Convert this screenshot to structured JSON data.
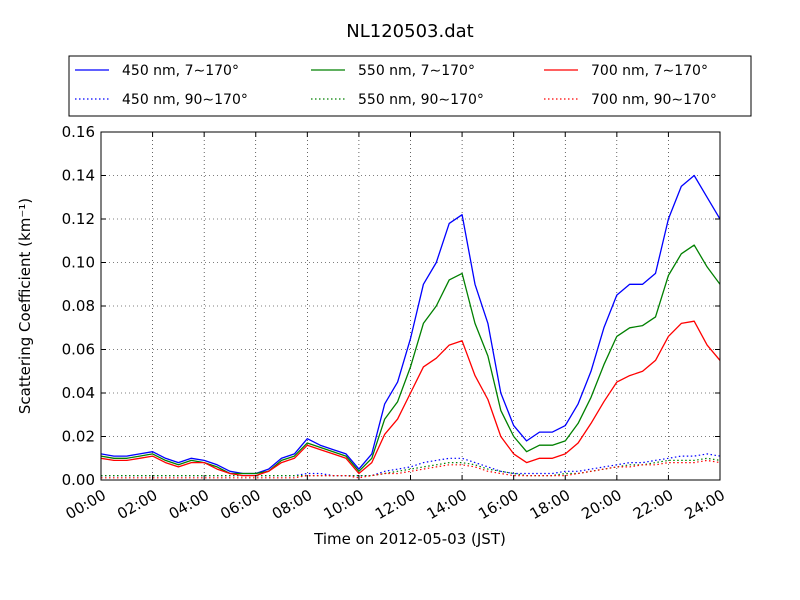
{
  "chart_data": {
    "type": "line",
    "title": "NL120503.dat",
    "xlabel": "Time on 2012-05-03 (JST)",
    "ylabel": "Scattering Coefficient (km⁻¹)",
    "xlim": [
      0,
      24
    ],
    "ylim": [
      0.0,
      0.16
    ],
    "xticks": [
      0,
      2,
      4,
      6,
      8,
      10,
      12,
      14,
      16,
      18,
      20,
      22,
      24
    ],
    "xtick_labels": [
      "00:00",
      "02:00",
      "04:00",
      "06:00",
      "08:00",
      "10:00",
      "12:00",
      "14:00",
      "16:00",
      "18:00",
      "20:00",
      "22:00",
      "24:00"
    ],
    "yticks": [
      0.0,
      0.02,
      0.04,
      0.06,
      0.08,
      0.1,
      0.12,
      0.14,
      0.16
    ],
    "ytick_labels": [
      "0.00",
      "0.02",
      "0.04",
      "0.06",
      "0.08",
      "0.10",
      "0.12",
      "0.14",
      "0.16"
    ],
    "grid": true,
    "legend_position": "top (above plot), 3 columns",
    "x": [
      0,
      0.5,
      1,
      1.5,
      2,
      2.5,
      3,
      3.5,
      4,
      4.5,
      5,
      5.5,
      6,
      6.5,
      7,
      7.5,
      8,
      8.5,
      9,
      9.5,
      10,
      10.5,
      11,
      11.5,
      12,
      12.5,
      13,
      13.5,
      14,
      14.5,
      15,
      15.5,
      16,
      16.5,
      17,
      17.5,
      18,
      18.5,
      19,
      19.5,
      20,
      20.5,
      21,
      21.5,
      22,
      22.5,
      23,
      23.5,
      24
    ],
    "series": [
      {
        "name": "450 nm, 7∼170°",
        "color": "#0000ff",
        "style": "solid",
        "values": [
          0.012,
          0.011,
          0.011,
          0.012,
          0.013,
          0.01,
          0.008,
          0.01,
          0.009,
          0.007,
          0.004,
          0.003,
          0.003,
          0.005,
          0.01,
          0.012,
          0.019,
          0.016,
          0.014,
          0.012,
          0.005,
          0.012,
          0.035,
          0.045,
          0.065,
          0.09,
          0.1,
          0.118,
          0.122,
          0.09,
          0.072,
          0.04,
          0.025,
          0.018,
          0.022,
          0.022,
          0.025,
          0.035,
          0.05,
          0.07,
          0.085,
          0.09,
          0.09,
          0.095,
          0.12,
          0.135,
          0.14,
          0.13,
          0.12
        ]
      },
      {
        "name": "550 nm, 7∼170°",
        "color": "#008000",
        "style": "solid",
        "values": [
          0.011,
          0.01,
          0.01,
          0.011,
          0.012,
          0.009,
          0.007,
          0.009,
          0.008,
          0.006,
          0.003,
          0.003,
          0.003,
          0.004,
          0.009,
          0.011,
          0.017,
          0.015,
          0.013,
          0.011,
          0.004,
          0.01,
          0.028,
          0.036,
          0.052,
          0.072,
          0.08,
          0.092,
          0.095,
          0.072,
          0.057,
          0.032,
          0.02,
          0.013,
          0.016,
          0.016,
          0.018,
          0.026,
          0.038,
          0.053,
          0.066,
          0.07,
          0.071,
          0.075,
          0.094,
          0.104,
          0.108,
          0.098,
          0.09
        ]
      },
      {
        "name": "700 nm, 7∼170°",
        "color": "#ff0000",
        "style": "solid",
        "values": [
          0.01,
          0.009,
          0.009,
          0.01,
          0.011,
          0.008,
          0.006,
          0.008,
          0.008,
          0.005,
          0.003,
          0.002,
          0.002,
          0.004,
          0.008,
          0.01,
          0.016,
          0.014,
          0.012,
          0.01,
          0.003,
          0.008,
          0.021,
          0.028,
          0.04,
          0.052,
          0.056,
          0.062,
          0.064,
          0.048,
          0.037,
          0.02,
          0.012,
          0.008,
          0.01,
          0.01,
          0.012,
          0.017,
          0.026,
          0.036,
          0.045,
          0.048,
          0.05,
          0.055,
          0.066,
          0.072,
          0.073,
          0.062,
          0.055
        ]
      },
      {
        "name": "450 nm, 90∼170°",
        "color": "#0000ff",
        "style": "dotted",
        "values": [
          0.002,
          0.002,
          0.002,
          0.002,
          0.002,
          0.002,
          0.002,
          0.002,
          0.002,
          0.002,
          0.002,
          0.002,
          0.002,
          0.002,
          0.002,
          0.002,
          0.003,
          0.003,
          0.002,
          0.002,
          0.002,
          0.002,
          0.004,
          0.005,
          0.006,
          0.008,
          0.009,
          0.01,
          0.01,
          0.008,
          0.006,
          0.004,
          0.003,
          0.003,
          0.003,
          0.003,
          0.004,
          0.004,
          0.005,
          0.006,
          0.007,
          0.008,
          0.008,
          0.009,
          0.01,
          0.011,
          0.011,
          0.012,
          0.011
        ]
      },
      {
        "name": "550 nm, 90∼170°",
        "color": "#008000",
        "style": "dotted",
        "values": [
          0.002,
          0.002,
          0.002,
          0.002,
          0.002,
          0.002,
          0.002,
          0.002,
          0.002,
          0.002,
          0.002,
          0.002,
          0.002,
          0.002,
          0.002,
          0.002,
          0.002,
          0.002,
          0.002,
          0.002,
          0.002,
          0.002,
          0.003,
          0.004,
          0.005,
          0.006,
          0.007,
          0.008,
          0.008,
          0.007,
          0.005,
          0.004,
          0.003,
          0.002,
          0.002,
          0.002,
          0.003,
          0.003,
          0.004,
          0.005,
          0.006,
          0.007,
          0.007,
          0.008,
          0.009,
          0.009,
          0.009,
          0.01,
          0.009
        ]
      },
      {
        "name": "700 nm, 90∼170°",
        "color": "#ff0000",
        "style": "dotted",
        "values": [
          0.001,
          0.001,
          0.001,
          0.001,
          0.001,
          0.001,
          0.001,
          0.001,
          0.001,
          0.001,
          0.001,
          0.001,
          0.001,
          0.001,
          0.001,
          0.001,
          0.002,
          0.002,
          0.002,
          0.002,
          0.001,
          0.002,
          0.003,
          0.003,
          0.004,
          0.005,
          0.006,
          0.007,
          0.007,
          0.006,
          0.004,
          0.003,
          0.002,
          0.002,
          0.002,
          0.002,
          0.002,
          0.003,
          0.004,
          0.005,
          0.006,
          0.006,
          0.007,
          0.007,
          0.008,
          0.008,
          0.008,
          0.009,
          0.008
        ]
      }
    ]
  }
}
